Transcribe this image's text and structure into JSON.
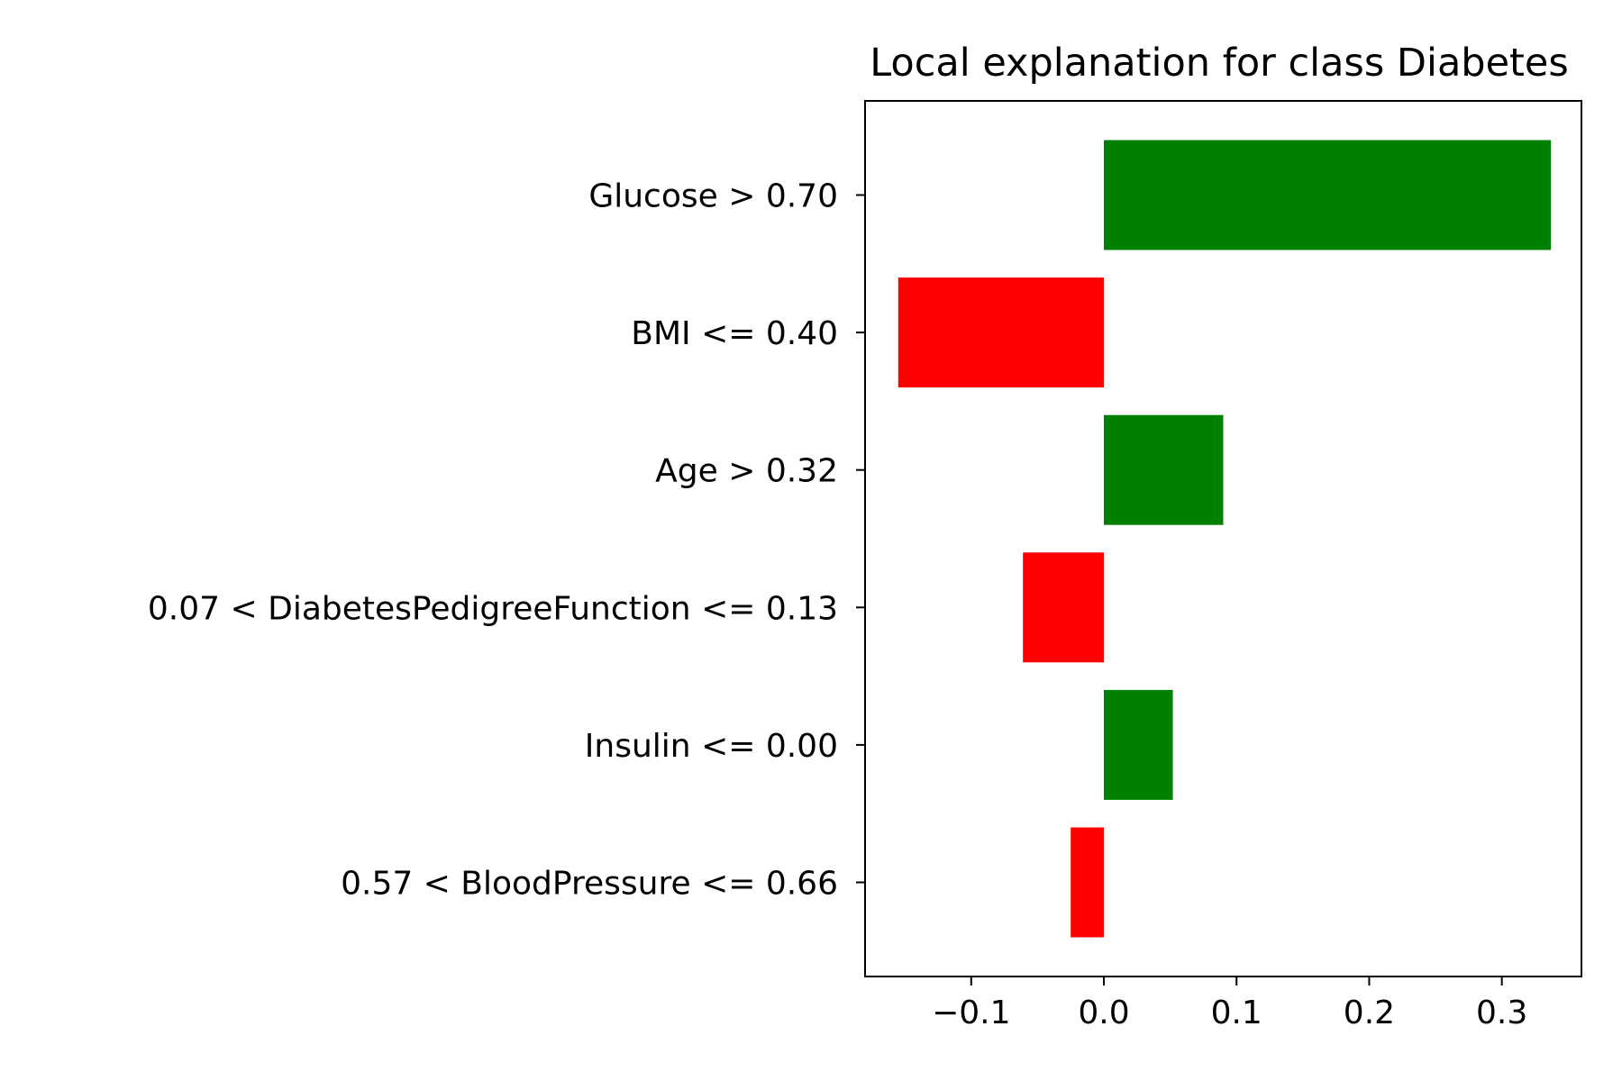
{
  "chart_data": {
    "type": "bar",
    "orientation": "horizontal",
    "title": "Local explanation for class Diabetes",
    "xlabel": "",
    "ylabel": "",
    "categories": [
      "Glucose > 0.70",
      "BMI <= 0.40",
      "Age > 0.32",
      "0.07 < DiabetesPedigreeFunction <= 0.13",
      "Insulin <= 0.00",
      "0.57 < BloodPressure <= 0.66"
    ],
    "values": [
      0.337,
      -0.155,
      0.09,
      -0.061,
      0.052,
      -0.025
    ],
    "xlim": [
      -0.18,
      0.36
    ],
    "xticks": [
      -0.1,
      0.0,
      0.1,
      0.2,
      0.3
    ],
    "xtick_labels": [
      "−0.1",
      "0.0",
      "0.1",
      "0.2",
      "0.3"
    ],
    "positive_color": "#008000",
    "negative_color": "#ff0000",
    "grid": false,
    "legend": "none"
  }
}
